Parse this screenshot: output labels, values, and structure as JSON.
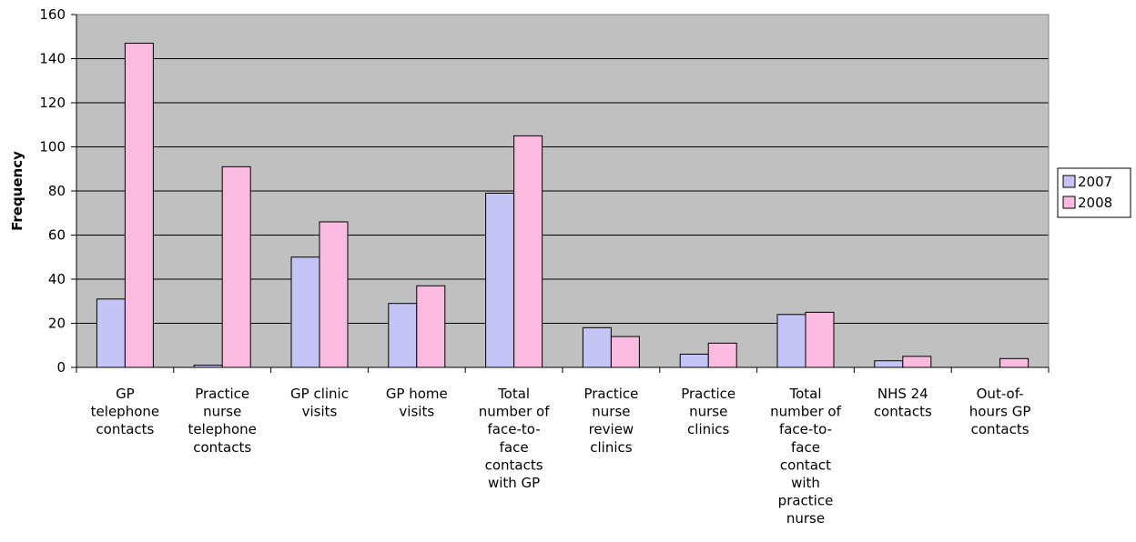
{
  "chart_data": {
    "type": "bar",
    "title": "",
    "xlabel": "",
    "ylabel": "Frequency",
    "ylim": [
      0,
      160
    ],
    "yticks": [
      0,
      20,
      40,
      60,
      80,
      100,
      120,
      140,
      160
    ],
    "grid": true,
    "legend_position": "right",
    "plot_background": "#c0c0c0",
    "categories": [
      [
        "GP",
        "telephone",
        "contacts"
      ],
      [
        "Practice",
        "nurse",
        "telephone",
        "contacts"
      ],
      [
        "GP clinic",
        "visits"
      ],
      [
        "GP home",
        "visits"
      ],
      [
        "Total",
        "number of",
        "face-to-",
        "face",
        "contacts",
        "with GP"
      ],
      [
        "Practice",
        "nurse",
        "review",
        "clinics"
      ],
      [
        "Practice",
        "nurse",
        "clinics"
      ],
      [
        "Total",
        "number of",
        "face-to-",
        "face",
        "contact",
        "with",
        "practice",
        "nurse"
      ],
      [
        "NHS 24",
        "contacts"
      ],
      [
        "Out-of-",
        "hours GP",
        "contacts"
      ]
    ],
    "series": [
      {
        "name": "2007",
        "color": "#c4c4f6",
        "values": [
          31,
          1,
          50,
          29,
          79,
          18,
          6,
          24,
          3,
          0
        ]
      },
      {
        "name": "2008",
        "color": "#fbbadf",
        "values": [
          147,
          91,
          66,
          37,
          105,
          14,
          11,
          25,
          5,
          4
        ]
      }
    ]
  }
}
